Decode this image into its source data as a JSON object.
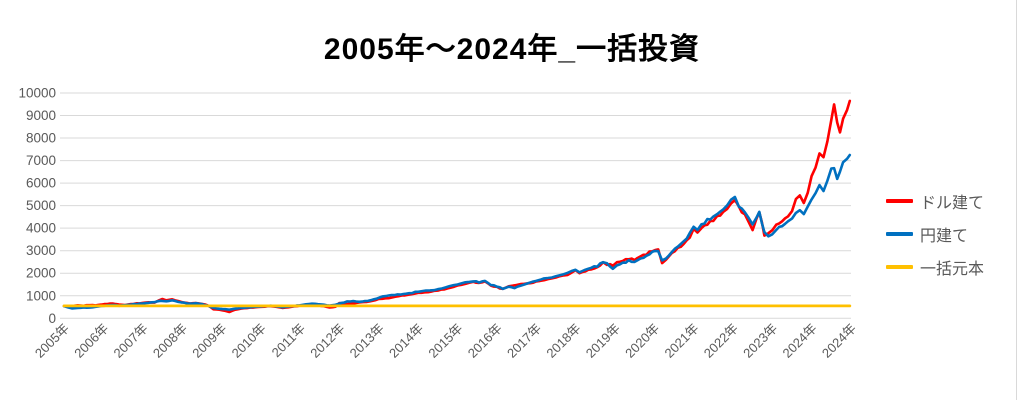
{
  "title": "2005年～2024年_一括投資",
  "colors": {
    "grid": "#d9d9d9",
    "axis_text": "#595959",
    "title_text": "#000000",
    "dollar_series": "#ff0000",
    "yen_series": "#0070c0",
    "principal_series": "#ffc000"
  },
  "legend": {
    "items": [
      {
        "label": "ドル建て",
        "color": "#ff0000"
      },
      {
        "label": "円建て",
        "color": "#0070c0"
      },
      {
        "label": "一括元本",
        "color": "#ffc000"
      }
    ]
  },
  "chart_data": {
    "type": "line",
    "title": "2005年～2024年_一括投資",
    "xlabel": "",
    "ylabel": "",
    "grid": true,
    "legend_position": "right",
    "y_axis": {
      "min": 0,
      "max": 10000,
      "step": 1000,
      "tick_labels": [
        "0",
        "1000",
        "2000",
        "3000",
        "4000",
        "5000",
        "6000",
        "7000",
        "8000",
        "9000",
        "10000"
      ]
    },
    "x_axis": {
      "range": [
        2005,
        2025
      ],
      "tick_labels": [
        "2005年",
        "2006年",
        "2007年",
        "2008年",
        "2009年",
        "2010年",
        "2011年",
        "2012年",
        "2013年",
        "2014年",
        "2015年",
        "2016年",
        "2017年",
        "2018年",
        "2019年",
        "2020年",
        "2021年",
        "2022年",
        "2023年",
        "2024年",
        "2024年"
      ]
    },
    "series": [
      {
        "name": "ドル建て",
        "color": "#ff0000",
        "width": 2.6,
        "wiggle": 0.013,
        "points": [
          [
            2005.0,
            540
          ],
          [
            2005.1,
            560
          ],
          [
            2005.2,
            545
          ],
          [
            2005.35,
            575
          ],
          [
            2005.5,
            560
          ],
          [
            2005.65,
            590
          ],
          [
            2005.8,
            575
          ],
          [
            2005.95,
            610
          ],
          [
            2006.1,
            640
          ],
          [
            2006.25,
            655
          ],
          [
            2006.4,
            610
          ],
          [
            2006.55,
            590
          ],
          [
            2006.7,
            630
          ],
          [
            2006.85,
            660
          ],
          [
            2007.0,
            680
          ],
          [
            2007.15,
            710
          ],
          [
            2007.3,
            690
          ],
          [
            2007.4,
            780
          ],
          [
            2007.5,
            860
          ],
          [
            2007.6,
            800
          ],
          [
            2007.75,
            840
          ],
          [
            2007.9,
            760
          ],
          [
            2008.05,
            700
          ],
          [
            2008.2,
            660
          ],
          [
            2008.35,
            680
          ],
          [
            2008.5,
            640
          ],
          [
            2008.65,
            580
          ],
          [
            2008.8,
            400
          ],
          [
            2008.95,
            380
          ],
          [
            2009.1,
            330
          ],
          [
            2009.2,
            280
          ],
          [
            2009.35,
            380
          ],
          [
            2009.5,
            430
          ],
          [
            2009.65,
            460
          ],
          [
            2009.8,
            480
          ],
          [
            2009.95,
            500
          ],
          [
            2010.1,
            520
          ],
          [
            2010.25,
            540
          ],
          [
            2010.4,
            510
          ],
          [
            2010.55,
            460
          ],
          [
            2010.7,
            490
          ],
          [
            2010.85,
            530
          ],
          [
            2011.0,
            560
          ],
          [
            2011.15,
            580
          ],
          [
            2011.3,
            590
          ],
          [
            2011.45,
            570
          ],
          [
            2011.6,
            540
          ],
          [
            2011.75,
            480
          ],
          [
            2011.9,
            510
          ],
          [
            2012.0,
            670
          ],
          [
            2012.2,
            640
          ],
          [
            2012.35,
            660
          ],
          [
            2012.5,
            700
          ],
          [
            2012.7,
            730
          ],
          [
            2012.85,
            780
          ],
          [
            2013.0,
            850
          ],
          [
            2013.25,
            900
          ],
          [
            2013.5,
            980
          ],
          [
            2013.75,
            1050
          ],
          [
            2014.0,
            1120
          ],
          [
            2014.25,
            1170
          ],
          [
            2014.5,
            1230
          ],
          [
            2014.75,
            1330
          ],
          [
            2015.0,
            1440
          ],
          [
            2015.2,
            1540
          ],
          [
            2015.4,
            1620
          ],
          [
            2015.55,
            1560
          ],
          [
            2015.7,
            1640
          ],
          [
            2015.85,
            1450
          ],
          [
            2016.0,
            1380
          ],
          [
            2016.15,
            1300
          ],
          [
            2016.3,
            1420
          ],
          [
            2016.5,
            1480
          ],
          [
            2016.7,
            1530
          ],
          [
            2016.85,
            1560
          ],
          [
            2017.0,
            1620
          ],
          [
            2017.2,
            1700
          ],
          [
            2017.4,
            1780
          ],
          [
            2017.6,
            1850
          ],
          [
            2017.8,
            1950
          ],
          [
            2018.0,
            2120
          ],
          [
            2018.1,
            2000
          ],
          [
            2018.25,
            2100
          ],
          [
            2018.4,
            2180
          ],
          [
            2018.55,
            2250
          ],
          [
            2018.7,
            2480
          ],
          [
            2018.8,
            2400
          ],
          [
            2018.95,
            2350
          ],
          [
            2019.05,
            2480
          ],
          [
            2019.2,
            2550
          ],
          [
            2019.35,
            2650
          ],
          [
            2019.5,
            2600
          ],
          [
            2019.65,
            2750
          ],
          [
            2019.8,
            2850
          ],
          [
            2019.95,
            3000
          ],
          [
            2020.1,
            3050
          ],
          [
            2020.2,
            2450
          ],
          [
            2020.3,
            2600
          ],
          [
            2020.45,
            2900
          ],
          [
            2020.6,
            3100
          ],
          [
            2020.75,
            3300
          ],
          [
            2020.9,
            3600
          ],
          [
            2021.0,
            3950
          ],
          [
            2021.1,
            3800
          ],
          [
            2021.2,
            4000
          ],
          [
            2021.35,
            4200
          ],
          [
            2021.5,
            4350
          ],
          [
            2021.6,
            4500
          ],
          [
            2021.75,
            4700
          ],
          [
            2021.85,
            4850
          ],
          [
            2021.95,
            5150
          ],
          [
            2022.05,
            5250
          ],
          [
            2022.15,
            4900
          ],
          [
            2022.3,
            4600
          ],
          [
            2022.4,
            4300
          ],
          [
            2022.5,
            3950
          ],
          [
            2022.6,
            4400
          ],
          [
            2022.67,
            4750
          ],
          [
            2022.8,
            3700
          ],
          [
            2022.9,
            3800
          ],
          [
            2023.0,
            3900
          ],
          [
            2023.1,
            4150
          ],
          [
            2023.25,
            4300
          ],
          [
            2023.4,
            4550
          ],
          [
            2023.5,
            4800
          ],
          [
            2023.6,
            5250
          ],
          [
            2023.7,
            5400
          ],
          [
            2023.8,
            5150
          ],
          [
            2023.9,
            5600
          ],
          [
            2024.0,
            6300
          ],
          [
            2024.1,
            6700
          ],
          [
            2024.2,
            7300
          ],
          [
            2024.3,
            7100
          ],
          [
            2024.4,
            7900
          ],
          [
            2024.5,
            8900
          ],
          [
            2024.57,
            9400
          ],
          [
            2024.65,
            8700
          ],
          [
            2024.72,
            8250
          ],
          [
            2024.8,
            8900
          ],
          [
            2024.9,
            9300
          ],
          [
            2024.97,
            9650
          ]
        ]
      },
      {
        "name": "円建て",
        "color": "#0070c0",
        "width": 2.6,
        "wiggle": 0.013,
        "points": [
          [
            2005.0,
            540
          ],
          [
            2005.1,
            480
          ],
          [
            2005.2,
            440
          ],
          [
            2005.35,
            460
          ],
          [
            2005.5,
            480
          ],
          [
            2005.65,
            470
          ],
          [
            2005.8,
            510
          ],
          [
            2005.95,
            545
          ],
          [
            2006.1,
            570
          ],
          [
            2006.25,
            590
          ],
          [
            2006.4,
            560
          ],
          [
            2006.55,
            580
          ],
          [
            2006.7,
            610
          ],
          [
            2006.85,
            640
          ],
          [
            2007.0,
            660
          ],
          [
            2007.15,
            690
          ],
          [
            2007.3,
            720
          ],
          [
            2007.45,
            780
          ],
          [
            2007.6,
            750
          ],
          [
            2007.75,
            800
          ],
          [
            2007.9,
            730
          ],
          [
            2008.05,
            690
          ],
          [
            2008.2,
            650
          ],
          [
            2008.35,
            670
          ],
          [
            2008.5,
            630
          ],
          [
            2008.65,
            560
          ],
          [
            2008.8,
            460
          ],
          [
            2008.95,
            420
          ],
          [
            2009.1,
            400
          ],
          [
            2009.2,
            380
          ],
          [
            2009.35,
            430
          ],
          [
            2009.5,
            460
          ],
          [
            2009.65,
            480
          ],
          [
            2009.8,
            500
          ],
          [
            2009.95,
            520
          ],
          [
            2010.1,
            540
          ],
          [
            2010.25,
            560
          ],
          [
            2010.4,
            530
          ],
          [
            2010.55,
            490
          ],
          [
            2010.7,
            520
          ],
          [
            2010.85,
            550
          ],
          [
            2011.0,
            580
          ],
          [
            2011.15,
            620
          ],
          [
            2011.3,
            650
          ],
          [
            2011.45,
            630
          ],
          [
            2011.6,
            600
          ],
          [
            2011.75,
            560
          ],
          [
            2011.9,
            600
          ],
          [
            2012.05,
            680
          ],
          [
            2012.2,
            740
          ],
          [
            2012.35,
            760
          ],
          [
            2012.5,
            730
          ],
          [
            2012.65,
            760
          ],
          [
            2012.8,
            800
          ],
          [
            2012.95,
            880
          ],
          [
            2013.1,
            970
          ],
          [
            2013.25,
            1010
          ],
          [
            2013.4,
            1040
          ],
          [
            2013.55,
            1060
          ],
          [
            2013.7,
            1090
          ],
          [
            2013.85,
            1130
          ],
          [
            2014.0,
            1190
          ],
          [
            2014.2,
            1220
          ],
          [
            2014.4,
            1260
          ],
          [
            2014.6,
            1320
          ],
          [
            2014.8,
            1420
          ],
          [
            2015.0,
            1520
          ],
          [
            2015.2,
            1580
          ],
          [
            2015.4,
            1650
          ],
          [
            2015.55,
            1600
          ],
          [
            2015.7,
            1660
          ],
          [
            2015.85,
            1480
          ],
          [
            2016.0,
            1420
          ],
          [
            2016.15,
            1310
          ],
          [
            2016.3,
            1400
          ],
          [
            2016.45,
            1350
          ],
          [
            2016.6,
            1450
          ],
          [
            2016.8,
            1550
          ],
          [
            2017.0,
            1680
          ],
          [
            2017.2,
            1750
          ],
          [
            2017.4,
            1820
          ],
          [
            2017.6,
            1920
          ],
          [
            2017.8,
            2000
          ],
          [
            2018.0,
            2180
          ],
          [
            2018.1,
            2050
          ],
          [
            2018.25,
            2150
          ],
          [
            2018.4,
            2250
          ],
          [
            2018.55,
            2320
          ],
          [
            2018.7,
            2500
          ],
          [
            2018.8,
            2420
          ],
          [
            2018.95,
            2200
          ],
          [
            2019.05,
            2350
          ],
          [
            2019.2,
            2450
          ],
          [
            2019.35,
            2550
          ],
          [
            2019.5,
            2500
          ],
          [
            2019.65,
            2650
          ],
          [
            2019.8,
            2750
          ],
          [
            2019.95,
            2950
          ],
          [
            2020.1,
            3000
          ],
          [
            2020.2,
            2550
          ],
          [
            2020.3,
            2650
          ],
          [
            2020.45,
            2950
          ],
          [
            2020.6,
            3200
          ],
          [
            2020.75,
            3400
          ],
          [
            2020.9,
            3750
          ],
          [
            2021.0,
            4100
          ],
          [
            2021.1,
            3950
          ],
          [
            2021.2,
            4150
          ],
          [
            2021.35,
            4350
          ],
          [
            2021.5,
            4500
          ],
          [
            2021.6,
            4650
          ],
          [
            2021.75,
            4800
          ],
          [
            2021.85,
            5000
          ],
          [
            2021.95,
            5250
          ],
          [
            2022.05,
            5380
          ],
          [
            2022.15,
            5000
          ],
          [
            2022.3,
            4700
          ],
          [
            2022.4,
            4450
          ],
          [
            2022.5,
            4150
          ],
          [
            2022.6,
            4500
          ],
          [
            2022.67,
            4700
          ],
          [
            2022.8,
            3800
          ],
          [
            2022.9,
            3600
          ],
          [
            2023.0,
            3750
          ],
          [
            2023.1,
            3950
          ],
          [
            2023.25,
            4100
          ],
          [
            2023.4,
            4300
          ],
          [
            2023.5,
            4400
          ],
          [
            2023.6,
            4700
          ],
          [
            2023.7,
            4850
          ],
          [
            2023.8,
            4600
          ],
          [
            2023.9,
            4900
          ],
          [
            2024.0,
            5300
          ],
          [
            2024.1,
            5600
          ],
          [
            2024.2,
            5900
          ],
          [
            2024.3,
            5650
          ],
          [
            2024.4,
            6100
          ],
          [
            2024.5,
            6600
          ],
          [
            2024.57,
            6700
          ],
          [
            2024.65,
            6200
          ],
          [
            2024.72,
            6500
          ],
          [
            2024.8,
            6900
          ],
          [
            2024.9,
            7000
          ],
          [
            2024.97,
            7250
          ]
        ]
      },
      {
        "name": "一括元本",
        "color": "#ffc000",
        "width": 2.8,
        "wiggle": 0,
        "points": [
          [
            2005.0,
            550
          ],
          [
            2024.97,
            550
          ]
        ]
      }
    ]
  }
}
